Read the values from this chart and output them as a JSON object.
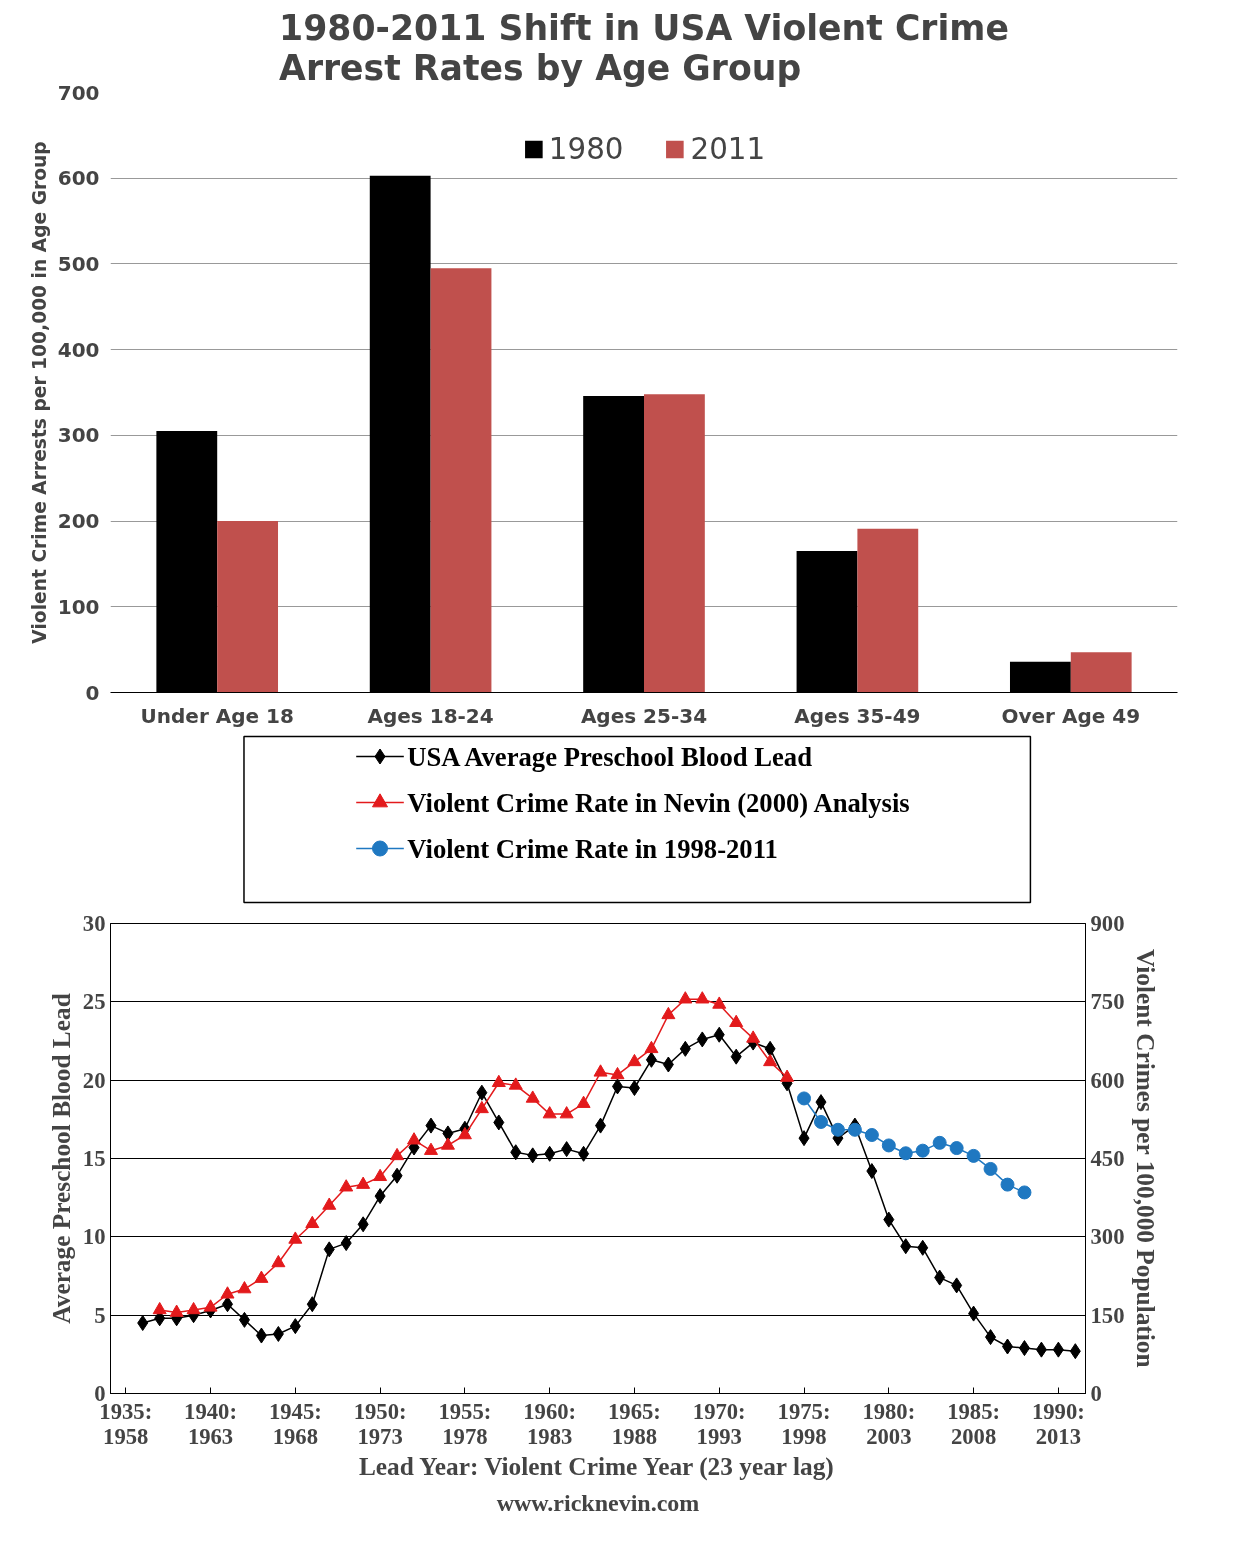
{
  "chart_data": [
    {
      "type": "bar",
      "title": "1980-2011 Shift in USA Violent Crime\nArrest Rates by Age Group",
      "ylabel": "Violent Crime Arrests per 100,000 in Age Group",
      "categories": [
        "Under Age 18",
        "Ages 18-24",
        "Ages 25-34",
        "Ages 35-49",
        "Over Age 49"
      ],
      "series": [
        {
          "name": "1980",
          "color": "#000000",
          "values": [
            305,
            603,
            346,
            165,
            36
          ]
        },
        {
          "name": "2011",
          "color": "#c0504d",
          "values": [
            200,
            495,
            348,
            191,
            47
          ]
        }
      ],
      "ylim": [
        0,
        700
      ],
      "yticks": [
        0,
        100,
        200,
        300,
        400,
        500,
        600,
        700
      ],
      "grid": "y",
      "legend": "top"
    },
    {
      "type": "line",
      "xlabel": "Lead Year: Violent Crime Year (23 year lag)",
      "ylabel": "Average Preschool Blood Lead",
      "y2label": "Violent Crimes per 100,000 Population",
      "annotations": [
        "www.ricknevin.com"
      ],
      "series": [
        {
          "name": "USA Average Preschool Blood Lead",
          "color": "#000000",
          "marker": "diamond",
          "x": [
            1936,
            1937,
            1938,
            1939,
            1940,
            1941,
            1942,
            1943,
            1944,
            1945,
            1946,
            1947,
            1948,
            1949,
            1950,
            1951,
            1952,
            1953,
            1954,
            1955,
            1956,
            1957,
            1958,
            1959,
            1960,
            1961,
            1962,
            1963,
            1964,
            1965,
            1966,
            1967,
            1968,
            1969,
            1970,
            1971,
            1972,
            1973,
            1974,
            1975,
            1976,
            1977,
            1978,
            1979,
            1980,
            1981,
            1982,
            1983,
            1984,
            1985,
            1986,
            1987,
            1988,
            1989,
            1990,
            1991
          ],
          "values": [
            4.5,
            4.8,
            4.8,
            5.0,
            5.3,
            5.7,
            4.7,
            3.7,
            3.8,
            4.3,
            5.7,
            9.2,
            9.6,
            10.8,
            12.6,
            13.9,
            15.7,
            17.1,
            16.6,
            16.9,
            19.2,
            17.3,
            15.4,
            15.2,
            15.3,
            15.6,
            15.3,
            17.1,
            19.6,
            19.5,
            21.3,
            21.0,
            22.0,
            22.6,
            22.9,
            21.5,
            22.4,
            22.0,
            19.8,
            16.3,
            18.6,
            16.3,
            17.1,
            14.2,
            11.1,
            9.4,
            9.3,
            7.4,
            6.9,
            5.1,
            3.6,
            3.0,
            2.9,
            2.8,
            2.8,
            2.7
          ]
        },
        {
          "name": "Violent Crime Rate in Nevin (2000) Analysis",
          "color": "#e31a1c",
          "marker": "triangle",
          "axis": "y2",
          "x": [
            1937,
            1938,
            1939,
            1940,
            1941,
            1942,
            1943,
            1944,
            1945,
            1946,
            1947,
            1948,
            1949,
            1950,
            1951,
            1952,
            1953,
            1954,
            1955,
            1956,
            1957,
            1958,
            1959,
            1960,
            1961,
            1962,
            1963,
            1964,
            1965,
            1966,
            1967,
            1968,
            1969,
            1970,
            1971,
            1972,
            1973,
            1974
          ],
          "values": [
            160,
            155,
            160,
            165,
            190,
            200,
            220,
            250,
            295,
            325,
            360,
            395,
            400,
            415,
            455,
            485,
            465,
            475,
            495,
            545,
            595,
            590,
            565,
            535,
            535,
            555,
            615,
            610,
            635,
            660,
            725,
            755,
            755,
            745,
            710,
            680,
            635,
            605
          ]
        },
        {
          "name": "Violent Crime Rate in 1998-2011",
          "color": "#1f78c1",
          "marker": "circle",
          "axis": "y2",
          "x": [
            1975,
            1976,
            1977,
            1978,
            1979,
            1980,
            1981,
            1982,
            1983,
            1984,
            1985,
            1986,
            1987,
            1988
          ],
          "values": [
            565,
            520,
            505,
            505,
            495,
            475,
            460,
            465,
            480,
            470,
            455,
            430,
            400,
            385
          ]
        }
      ],
      "xlim": [
        1934.1,
        1991.6
      ],
      "xticks": [
        {
          "value": 1935,
          "label": "1935:"
        },
        {
          "value": 1940,
          "label": "1940:"
        },
        {
          "value": 1945,
          "label": "1945:"
        },
        {
          "value": 1950,
          "label": "1950:"
        },
        {
          "value": 1955,
          "label": "1955:"
        },
        {
          "value": 1960,
          "label": "1960:"
        },
        {
          "value": 1965,
          "label": "1965:"
        },
        {
          "value": 1970,
          "label": "1970:"
        },
        {
          "value": 1975,
          "label": "1975:"
        },
        {
          "value": 1980,
          "label": "1980:"
        },
        {
          "value": 1985,
          "label": "1985:"
        },
        {
          "value": 1990,
          "label": "1990:"
        }
      ],
      "x2lim": [
        1957.1,
        2014.6
      ],
      "x2ticks": [
        1958,
        1963,
        1968,
        1973,
        1978,
        1983,
        1988,
        1993,
        1998,
        2003,
        2008,
        2013
      ],
      "ylim": [
        0,
        30
      ],
      "yticks": [
        0,
        5,
        10,
        15,
        20,
        25,
        30
      ],
      "y2lim": [
        0,
        900
      ],
      "y2ticks": [
        0,
        150,
        300,
        450,
        600,
        750,
        900
      ],
      "grid": "y",
      "legend": "top",
      "line_style": "solid"
    }
  ]
}
